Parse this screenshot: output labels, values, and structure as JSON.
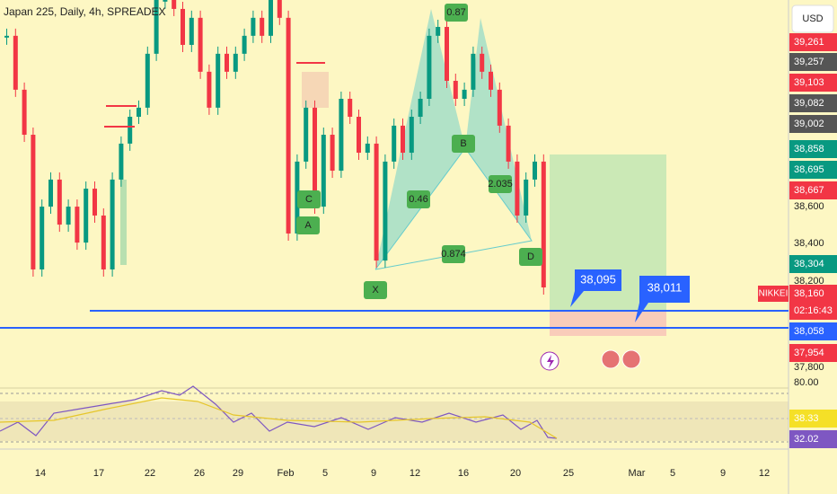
{
  "header": {
    "title": "Japan 225, Daily, 4h, SPREADEX",
    "currency": "USD"
  },
  "price": {
    "ylim_hint": "price",
    "scale_ref": [
      38400,
      37800
    ],
    "closes": [
      39405,
      39144,
      38926,
      38274,
      38578,
      38709,
      38491,
      38578,
      38404,
      38665,
      38535,
      38274,
      38709,
      38883,
      39013,
      39057,
      39318,
      39579,
      39579,
      39535,
      39361,
      39492,
      39231,
      39057,
      39318,
      39231,
      39318,
      39405,
      39492,
      39405,
      39579,
      39492,
      38448,
      38796,
      39057,
      38578,
      38926,
      38752,
      39100,
      39013,
      38839,
      38883,
      38317,
      38796,
      38970,
      38839,
      39013,
      39100,
      39405,
      39448,
      39187,
      39100,
      39144,
      39318,
      39231,
      39144,
      38970,
      38796,
      38535,
      38709,
      38796,
      38187
    ]
  },
  "price_axis": [
    {
      "label": "39,261",
      "color": "#f23645"
    },
    {
      "label": "39,257",
      "color": "#555"
    },
    {
      "label": "39,103",
      "color": "#f23645"
    },
    {
      "label": "39,082",
      "color": "#555"
    },
    {
      "label": "39,002",
      "color": "#555"
    },
    {
      "label": "38,858",
      "color": "#089981"
    },
    {
      "label": "38,695",
      "color": "#089981"
    },
    {
      "label": "38,667",
      "color": "#f23645"
    },
    {
      "label": "38,600",
      "color": ""
    },
    {
      "label": "38,400",
      "color": ""
    },
    {
      "label": "38,304",
      "color": "#089981"
    },
    {
      "label": "38,200",
      "color": ""
    },
    {
      "label": "38,160",
      "color": "#f23645"
    },
    {
      "label": "02:16:43",
      "color": "#f23645"
    },
    {
      "label": "38,058",
      "color": "#2962ff"
    },
    {
      "label": "37,954",
      "color": "#f23645"
    },
    {
      "label": "37,800",
      "color": ""
    },
    {
      "label": "80.00",
      "color": ""
    },
    {
      "label": "38.33",
      "color": "#f5e027"
    },
    {
      "label": "32.02",
      "color": "#7e57c2"
    }
  ],
  "symbol_tag": "NIKKEI",
  "time_axis": [
    "14",
    "17",
    "22",
    "26",
    "29",
    "Feb",
    "5",
    "9",
    "12",
    "16",
    "20",
    "25",
    "Mar",
    "5",
    "9",
    "12"
  ],
  "callouts": [
    "38,095",
    "38,011"
  ],
  "pattern_labels": [
    "0.87",
    "0.46",
    "0.874",
    "2.035",
    "X",
    "B",
    "D",
    "C",
    "A"
  ]
}
